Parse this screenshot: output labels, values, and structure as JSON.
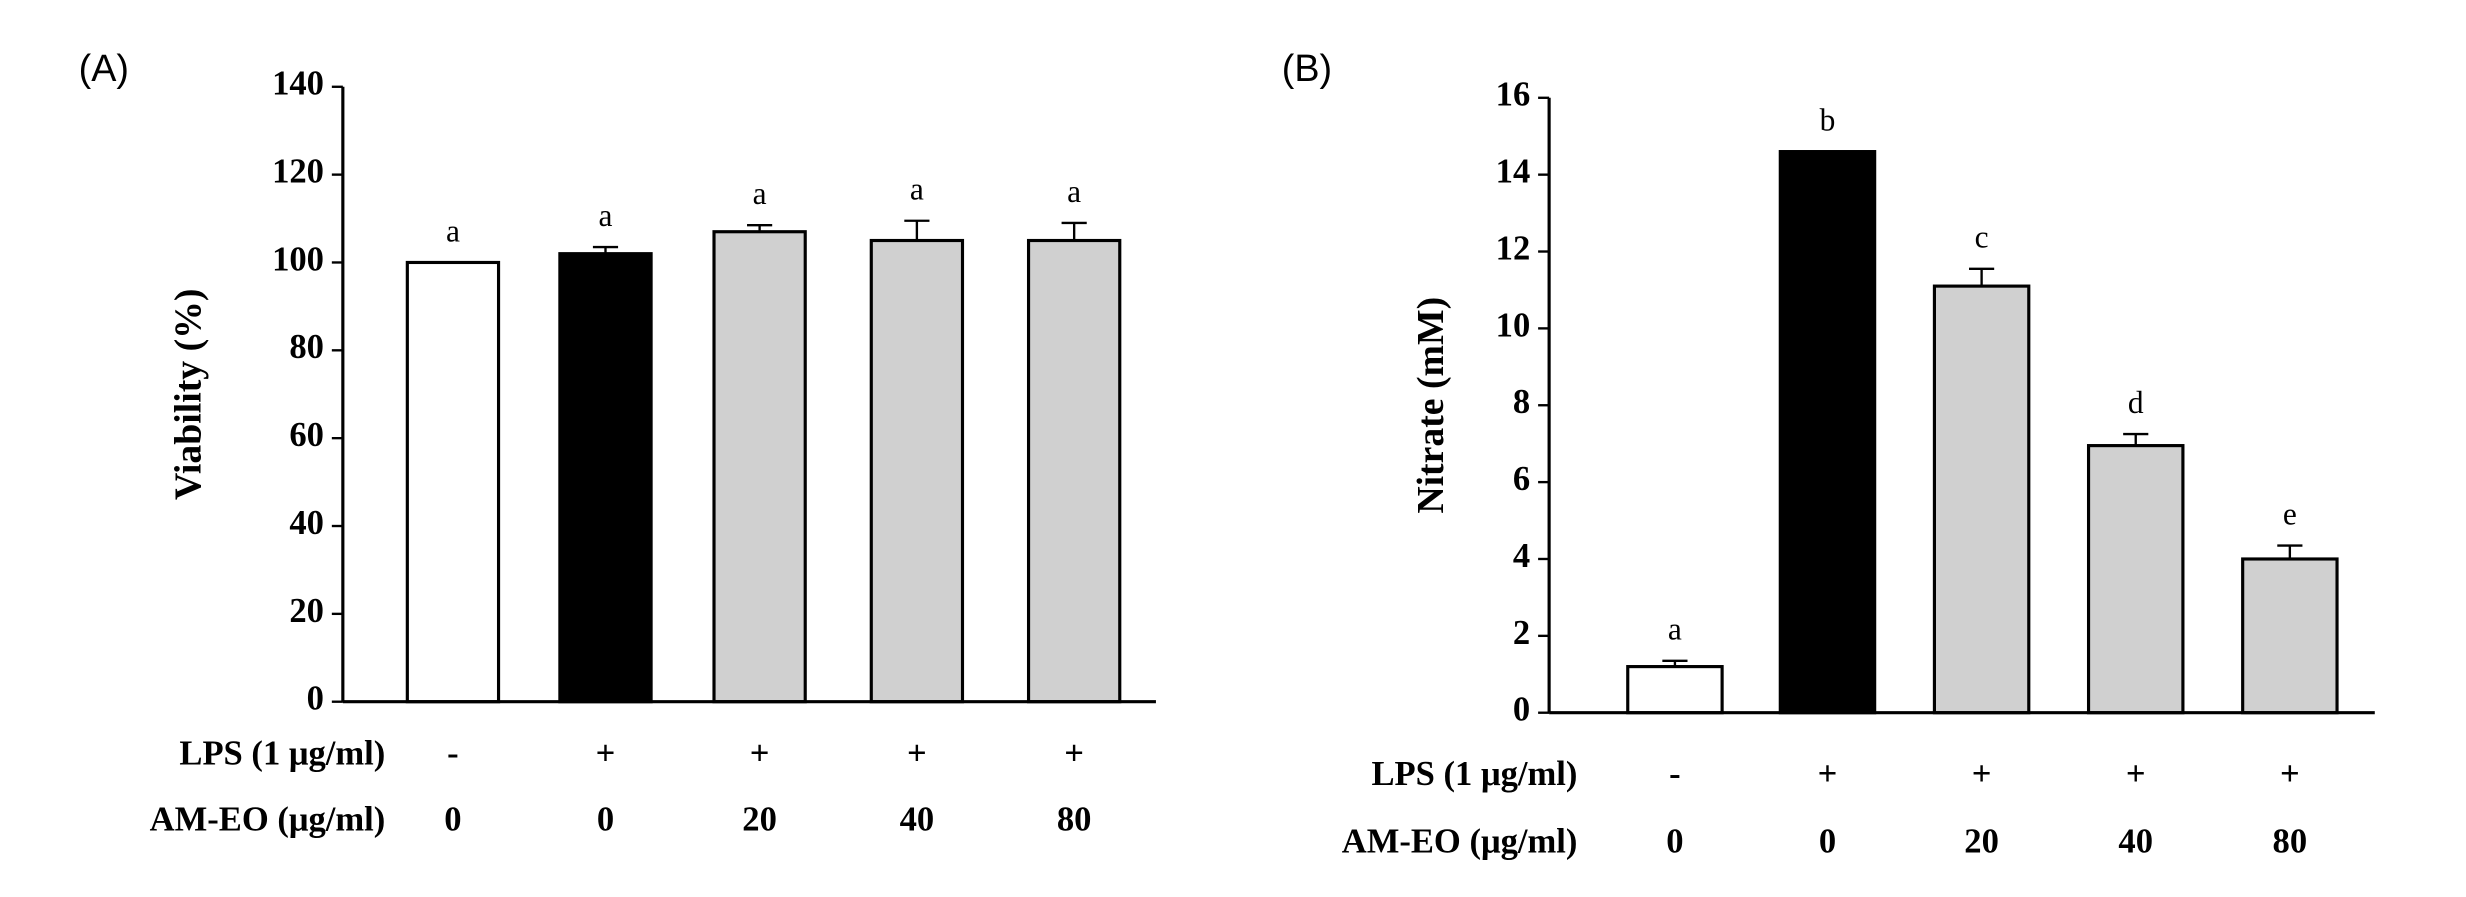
{
  "chart_data": [
    {
      "type": "bar",
      "panel": "(A)",
      "ylabel": "Viability (%)",
      "row_labels": [
        "LPS (1 μg/ml)",
        "AM-EO (μg/ml)"
      ],
      "lps": [
        "-",
        "+",
        "+",
        "+",
        "+"
      ],
      "am_eo": [
        "0",
        "0",
        "20",
        "40",
        "80"
      ],
      "values": [
        100,
        102,
        107,
        105,
        105
      ],
      "errors": [
        0,
        1.5,
        1.5,
        4.5,
        4
      ],
      "letters": [
        "a",
        "a",
        "a",
        "a",
        "a"
      ],
      "colors": [
        "#ffffff",
        "#000000",
        "#d0d0d0",
        "#d0d0d0",
        "#d0d0d0"
      ],
      "ylim": [
        0,
        140
      ],
      "yticks": [
        0,
        20,
        40,
        60,
        80,
        100,
        120,
        140
      ]
    },
    {
      "type": "bar",
      "panel": "(B)",
      "ylabel": "Nitrate (mM)",
      "row_labels": [
        "LPS (1 μg/ml)",
        "AM-EO (μg/ml)"
      ],
      "lps": [
        "-",
        "+",
        "+",
        "+",
        "+"
      ],
      "am_eo": [
        "0",
        "0",
        "20",
        "40",
        "80"
      ],
      "values": [
        1.2,
        14.6,
        11.1,
        6.95,
        4.0
      ],
      "errors": [
        0.15,
        0,
        0.45,
        0.3,
        0.35
      ],
      "letters": [
        "a",
        "b",
        "c",
        "d",
        "e"
      ],
      "colors": [
        "#ffffff",
        "#000000",
        "#d0d0d0",
        "#d0d0d0",
        "#d0d0d0"
      ],
      "ylim": [
        0,
        16
      ],
      "yticks": [
        0,
        2,
        4,
        6,
        8,
        10,
        12,
        14,
        16
      ]
    }
  ]
}
